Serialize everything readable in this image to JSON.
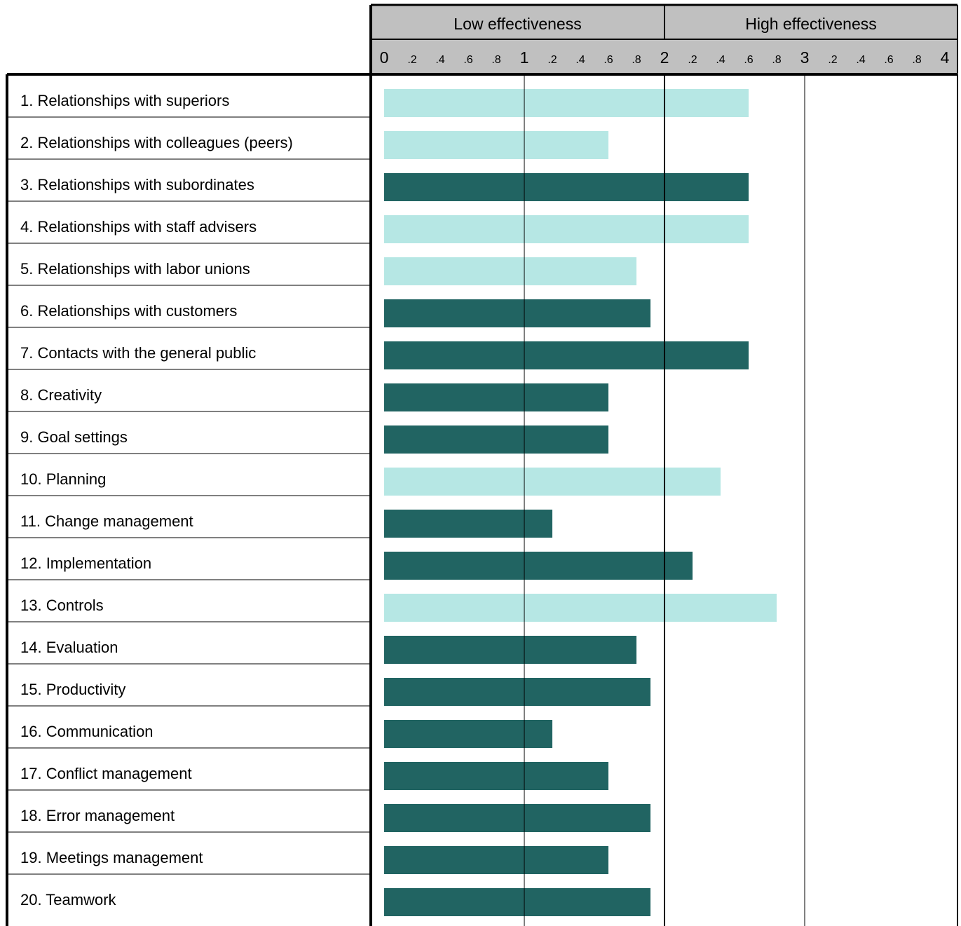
{
  "chart_data": {
    "type": "bar",
    "orientation": "horizontal",
    "header_bands": [
      "Low effectiveness",
      "High effectiveness"
    ],
    "tick_labels": [
      "0",
      ".2",
      ".4",
      ".6",
      ".8",
      "1",
      ".2",
      ".4",
      ".6",
      ".8",
      "2",
      ".2",
      ".4",
      ".6",
      ".8",
      "3",
      ".2",
      ".4",
      ".6",
      ".8",
      "4"
    ],
    "xlim": [
      0,
      4
    ],
    "categories": [
      "1. Relationships with superiors",
      "2. Relationships with colleagues (peers)",
      "3. Relationships with subordinates",
      "4. Relationships with staff advisers",
      "5. Relationships with labor unions",
      "6. Relationships with customers",
      "7. Contacts with the general public",
      "8. Creativity",
      "9. Goal settings",
      "10. Planning",
      "11. Change management",
      "12. Implementation",
      "13. Controls",
      "14. Evaluation",
      "15. Productivity",
      "16. Communication",
      "17. Conflict management",
      "18. Error management",
      "19. Meetings management",
      "20. Teamwork"
    ],
    "values": [
      2.6,
      1.6,
      2.6,
      2.6,
      1.8,
      1.9,
      2.6,
      1.6,
      1.6,
      2.4,
      1.2,
      2.2,
      2.8,
      1.8,
      1.9,
      1.2,
      1.6,
      1.9,
      1.6,
      1.9
    ],
    "bar_styles": [
      "light",
      "light",
      "dark",
      "light",
      "light",
      "dark",
      "dark",
      "dark",
      "dark",
      "light",
      "dark",
      "dark",
      "light",
      "dark",
      "dark",
      "dark",
      "dark",
      "dark",
      "dark",
      "dark"
    ],
    "colors": {
      "light": "#b6e7e4",
      "dark": "#216462",
      "header_bg": "#c0c0c0"
    },
    "grid": true,
    "legend": "none"
  }
}
